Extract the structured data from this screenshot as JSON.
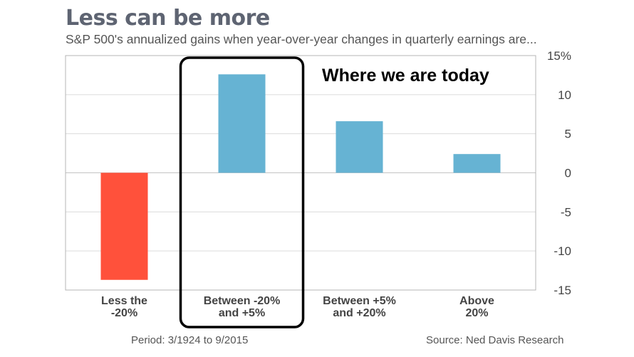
{
  "chart_data": {
    "type": "bar",
    "title": "Less can be more",
    "subtitle": "S&P 500's annualized gains when year-over-year changes in quarterly earnings are...",
    "categories": [
      [
        "Less the",
        "-20%"
      ],
      [
        "Between -20%",
        "and +5%"
      ],
      [
        "Between +5%",
        "and +20%"
      ],
      [
        "Above",
        "20%"
      ]
    ],
    "values": [
      -13.7,
      12.6,
      6.6,
      2.4
    ],
    "bar_colors": [
      "#ff513b",
      "#66b3d3",
      "#66b3d3",
      "#66b3d3"
    ],
    "ylim": [
      -15,
      15
    ],
    "yticks": [
      15,
      10,
      5,
      0,
      -5,
      -10,
      -15
    ],
    "ytick_labels": [
      "15%",
      "10",
      "5",
      "0",
      "-5",
      "-10",
      "-15"
    ],
    "y_axis_side": "right",
    "grid": true,
    "annotation": "Where we are today",
    "highlight_category_index": 1
  },
  "footer": {
    "period": "Period: 3/1924 to 9/2015",
    "source": "Source: Ned Davis Research"
  }
}
